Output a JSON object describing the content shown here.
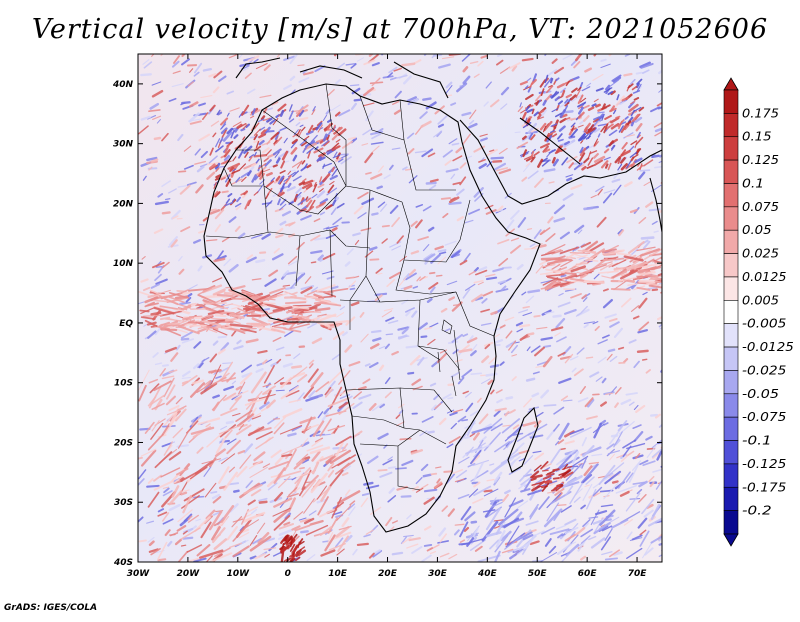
{
  "title": "Vertical velocity [m/s] at 700hPa, VT: 2021052606",
  "credit": "GrADS: IGES/COLA",
  "map": {
    "lon_range": [
      -30,
      75
    ],
    "lat_range": [
      -40,
      45
    ],
    "lat_ticks": [
      {
        "value": 40,
        "label": "40N"
      },
      {
        "value": 30,
        "label": "30N"
      },
      {
        "value": 20,
        "label": "20N"
      },
      {
        "value": 10,
        "label": "10N"
      },
      {
        "value": 0,
        "label": "EQ"
      },
      {
        "value": -10,
        "label": "10S"
      },
      {
        "value": -20,
        "label": "20S"
      },
      {
        "value": -30,
        "label": "30S"
      },
      {
        "value": -40,
        "label": "40S"
      }
    ],
    "lon_ticks": [
      {
        "value": -30,
        "label": "30W"
      },
      {
        "value": -20,
        "label": "20W"
      },
      {
        "value": -10,
        "label": "10W"
      },
      {
        "value": 0,
        "label": "0"
      },
      {
        "value": 10,
        "label": "10E"
      },
      {
        "value": 20,
        "label": "20E"
      },
      {
        "value": 30,
        "label": "30E"
      },
      {
        "value": 40,
        "label": "40E"
      },
      {
        "value": 50,
        "label": "50E"
      },
      {
        "value": 60,
        "label": "60E"
      },
      {
        "value": 70,
        "label": "70E"
      }
    ]
  },
  "colorbar": {
    "labels": [
      "0.175",
      "0.15",
      "0.125",
      "0.1",
      "0.075",
      "0.05",
      "0.025",
      "0.0125",
      "0.005",
      "-0.005",
      "-0.0125",
      "-0.025",
      "-0.05",
      "-0.075",
      "-0.1",
      "-0.125",
      "-0.175",
      "-0.2"
    ],
    "colors": [
      "#b01818",
      "#c02a2a",
      "#cd3e3e",
      "#d85656",
      "#e27070",
      "#ea8c8c",
      "#f1a9a9",
      "#f7c8c8",
      "#fce6e6",
      "#ffffff",
      "#e2e2fb",
      "#c6c6f6",
      "#a8a8f0",
      "#8a8aea",
      "#6c6ce2",
      "#5050d8",
      "#3232c8",
      "#1a1ab0",
      "#0a0a90"
    ]
  },
  "colors": {
    "positive": "#d04040",
    "negative": "#5a5ae0",
    "background": "#ffffff"
  }
}
